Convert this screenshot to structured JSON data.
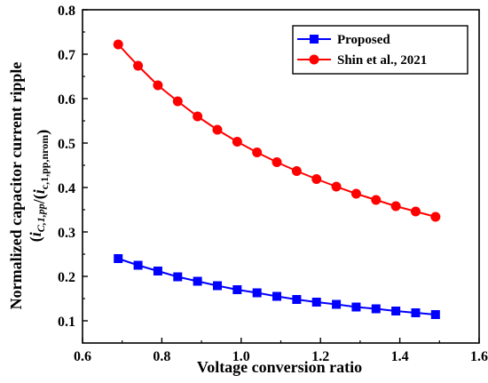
{
  "chart_data": {
    "type": "line",
    "xlabel": "Voltage conversion ratio",
    "ylabel": {
      "line1": "Normalized capacitor current ripple",
      "line2_parts": [
        {
          "t": "(",
          "sub": false,
          "it": false
        },
        {
          "t": "i",
          "sub": false,
          "it": true
        },
        {
          "t": "C,1,pp",
          "sub": true,
          "it": true
        },
        {
          "t": "/(",
          "sub": false,
          "it": false
        },
        {
          "t": "i",
          "sub": false,
          "it": true
        },
        {
          "t": "c,1,pp,nrom",
          "sub": true,
          "it": false
        },
        {
          "t": ")",
          "sub": false,
          "it": false
        }
      ]
    },
    "xlim": [
      0.6,
      1.6
    ],
    "ylim": [
      0.05,
      0.8
    ],
    "xticks": [
      "0.6",
      "0.8",
      "1.0",
      "1.2",
      "1.4",
      "1.6"
    ],
    "xtick_values": [
      0.6,
      0.8,
      1.0,
      1.2,
      1.4,
      1.6
    ],
    "yticks": [
      "0.1",
      "0.2",
      "0.3",
      "0.4",
      "0.5",
      "0.6",
      "0.7",
      "0.8"
    ],
    "ytick_values": [
      0.1,
      0.2,
      0.3,
      0.4,
      0.5,
      0.6,
      0.7,
      0.8
    ],
    "legend_position": "top-right",
    "series": [
      {
        "name": "Proposed",
        "color": "#0000ff",
        "marker": "square",
        "x": [
          0.69,
          0.74,
          0.79,
          0.84,
          0.89,
          0.94,
          0.99,
          1.04,
          1.09,
          1.14,
          1.19,
          1.24,
          1.29,
          1.34,
          1.39,
          1.44,
          1.49
        ],
        "y": [
          0.24,
          0.225,
          0.212,
          0.199,
          0.189,
          0.179,
          0.17,
          0.163,
          0.155,
          0.148,
          0.142,
          0.137,
          0.131,
          0.127,
          0.122,
          0.118,
          0.114
        ]
      },
      {
        "name": "Shin et al., 2021",
        "color": "#ff0000",
        "marker": "circle",
        "x": [
          0.69,
          0.74,
          0.79,
          0.84,
          0.89,
          0.94,
          0.99,
          1.04,
          1.09,
          1.14,
          1.19,
          1.24,
          1.29,
          1.34,
          1.39,
          1.44,
          1.49
        ],
        "y": [
          0.722,
          0.674,
          0.63,
          0.594,
          0.56,
          0.53,
          0.503,
          0.479,
          0.457,
          0.437,
          0.419,
          0.402,
          0.386,
          0.372,
          0.358,
          0.346,
          0.334
        ]
      }
    ]
  }
}
